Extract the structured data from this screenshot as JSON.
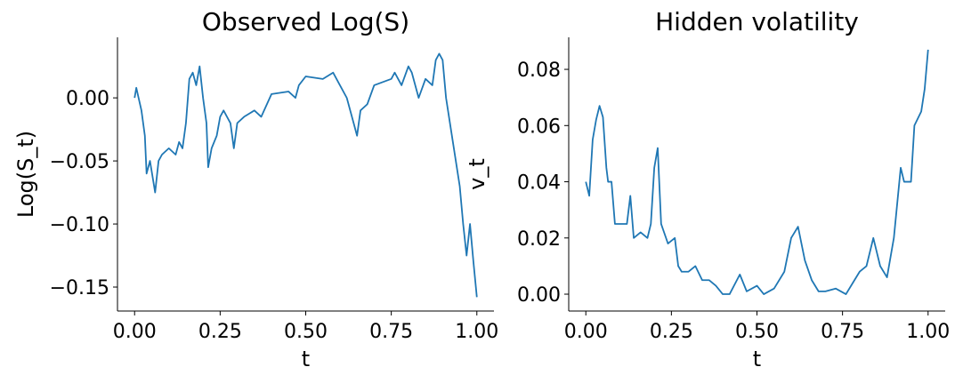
{
  "chart_data": [
    {
      "type": "line",
      "title": "Observed Log(S)",
      "xlabel": "t",
      "ylabel": "Log(S_t)",
      "xlim": [
        -0.05,
        1.05
      ],
      "ylim": [
        -0.169,
        0.048
      ],
      "xticks": [
        {
          "value": 0,
          "label": "0.00"
        },
        {
          "value": 0.25,
          "label": "0.25"
        },
        {
          "value": 0.5,
          "label": "0.50"
        },
        {
          "value": 0.75,
          "label": "0.75"
        },
        {
          "value": 1,
          "label": "1.00"
        }
      ],
      "yticks": [
        {
          "value": 0,
          "label": "0.00"
        },
        {
          "value": -0.05,
          "label": "−0.05"
        },
        {
          "value": -0.1,
          "label": "−0.10"
        },
        {
          "value": -0.15,
          "label": "−0.15"
        }
      ],
      "color": "#1f77b4",
      "x": [
        0,
        0.005,
        0.02,
        0.03,
        0.035,
        0.045,
        0.06,
        0.07,
        0.08,
        0.1,
        0.12,
        0.13,
        0.14,
        0.15,
        0.16,
        0.17,
        0.18,
        0.19,
        0.2,
        0.21,
        0.215,
        0.225,
        0.24,
        0.25,
        0.26,
        0.28,
        0.29,
        0.3,
        0.32,
        0.35,
        0.37,
        0.4,
        0.45,
        0.47,
        0.48,
        0.5,
        0.55,
        0.58,
        0.6,
        0.62,
        0.64,
        0.65,
        0.66,
        0.68,
        0.7,
        0.75,
        0.76,
        0.78,
        0.8,
        0.81,
        0.83,
        0.85,
        0.87,
        0.88,
        0.89,
        0.9,
        0.91,
        0.93,
        0.95,
        0.96,
        0.97,
        0.98,
        0.99,
        1.0
      ],
      "values": [
        0,
        0.008,
        -0.01,
        -0.03,
        -0.06,
        -0.05,
        -0.075,
        -0.05,
        -0.045,
        -0.04,
        -0.045,
        -0.035,
        -0.04,
        -0.02,
        0.015,
        0.02,
        0.01,
        0.025,
        0,
        -0.02,
        -0.055,
        -0.04,
        -0.03,
        -0.015,
        -0.01,
        -0.02,
        -0.04,
        -0.02,
        -0.015,
        -0.01,
        -0.015,
        0.003,
        0.005,
        0,
        0.01,
        0.017,
        0.015,
        0.02,
        0.01,
        0,
        -0.02,
        -0.03,
        -0.01,
        -0.005,
        0.01,
        0.015,
        0.02,
        0.01,
        0.025,
        0.02,
        0,
        0.015,
        0.01,
        0.03,
        0.035,
        0.03,
        0,
        -0.035,
        -0.07,
        -0.1,
        -0.125,
        -0.1,
        -0.13,
        -0.158
      ]
    },
    {
      "type": "line",
      "title": "Hidden volatility",
      "xlabel": "t",
      "ylabel": "v_t",
      "xlim": [
        -0.05,
        1.05
      ],
      "ylim": [
        -0.006,
        0.0914
      ],
      "xticks": [
        {
          "value": 0,
          "label": "0.00"
        },
        {
          "value": 0.25,
          "label": "0.25"
        },
        {
          "value": 0.5,
          "label": "0.50"
        },
        {
          "value": 0.75,
          "label": "0.75"
        },
        {
          "value": 1,
          "label": "1.00"
        }
      ],
      "yticks": [
        {
          "value": 0,
          "label": "0.00"
        },
        {
          "value": 0.02,
          "label": "0.02"
        },
        {
          "value": 0.04,
          "label": "0.04"
        },
        {
          "value": 0.06,
          "label": "0.06"
        },
        {
          "value": 0.08,
          "label": "0.08"
        }
      ],
      "color": "#1f77b4",
      "x": [
        0,
        0.01,
        0.02,
        0.03,
        0.04,
        0.05,
        0.06,
        0.065,
        0.075,
        0.085,
        0.1,
        0.12,
        0.13,
        0.14,
        0.16,
        0.18,
        0.19,
        0.2,
        0.21,
        0.22,
        0.24,
        0.26,
        0.27,
        0.28,
        0.3,
        0.32,
        0.34,
        0.36,
        0.38,
        0.4,
        0.42,
        0.45,
        0.47,
        0.5,
        0.52,
        0.55,
        0.58,
        0.6,
        0.62,
        0.64,
        0.66,
        0.68,
        0.7,
        0.73,
        0.76,
        0.78,
        0.8,
        0.82,
        0.84,
        0.86,
        0.88,
        0.9,
        0.92,
        0.93,
        0.95,
        0.96,
        0.98,
        0.99,
        1.0
      ],
      "values": [
        0.04,
        0.035,
        0.055,
        0.062,
        0.067,
        0.063,
        0.045,
        0.04,
        0.04,
        0.025,
        0.025,
        0.025,
        0.035,
        0.02,
        0.022,
        0.02,
        0.025,
        0.045,
        0.052,
        0.025,
        0.018,
        0.02,
        0.01,
        0.008,
        0.008,
        0.01,
        0.005,
        0.005,
        0.003,
        0,
        0,
        0.007,
        0.001,
        0.003,
        0,
        0.002,
        0.008,
        0.02,
        0.024,
        0.012,
        0.005,
        0.001,
        0.001,
        0.002,
        0,
        0.004,
        0.008,
        0.01,
        0.02,
        0.01,
        0.006,
        0.02,
        0.045,
        0.04,
        0.04,
        0.06,
        0.065,
        0.073,
        0.087
      ]
    }
  ]
}
